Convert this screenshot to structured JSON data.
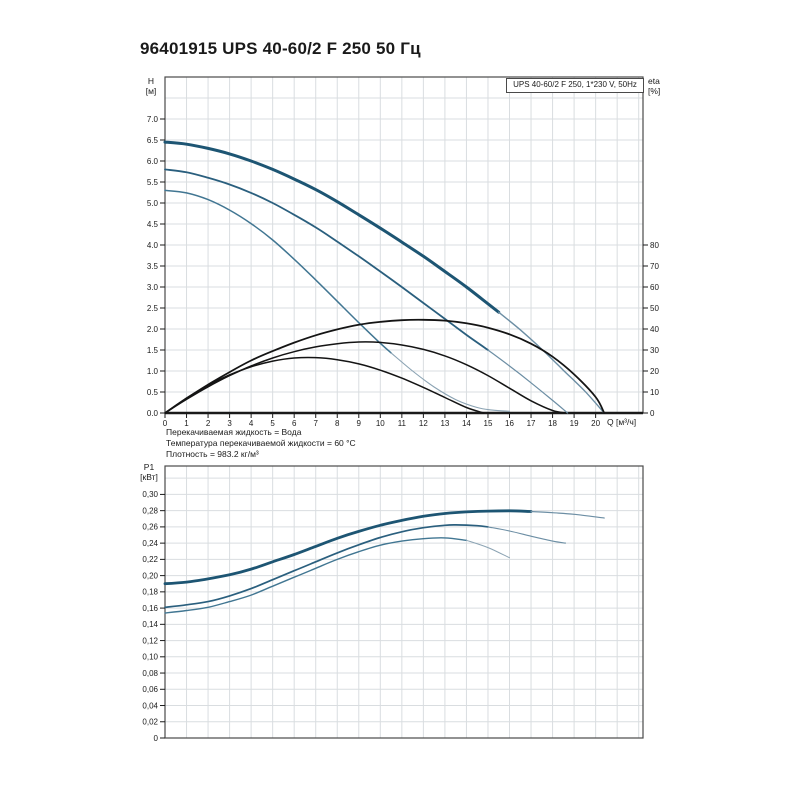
{
  "title": "96401915 UPS 40-60/2 F 250 50 Гц",
  "legend": "UPS 40-60/2 F 250, 1*230 V, 50Hz",
  "notes": [
    "Перекачиваемая жидкость = Вода",
    "Температура перекачиваемой жидкости = 60 °C",
    "Плотность = 983.2 кг/м³"
  ],
  "axis_units": {
    "head_line1": "H",
    "head_line2": "[м]",
    "eta_line1": "eta",
    "eta_line2": "[%]",
    "flow": "Q [м³/ч]",
    "power_line1": "P1",
    "power_line2": "[кВт]"
  },
  "colors": {
    "curve_dark_blue": "#1d5573",
    "curve_mid_blue": "#2a5f7e",
    "curve_light_blue": "#417692",
    "curve_tail_blue": "#6c8ea4",
    "curve_tail_pale": "#8ba3b3",
    "curve_black": "#141414",
    "grid": "#d9dde0",
    "frame": "#4a4a4a",
    "axis": "#1a1a1a"
  },
  "chart_data": [
    {
      "type": "line",
      "title": "Head (H) and efficiency (eta) vs flow (Q)",
      "xlabel": "Q [м³/ч]",
      "ylabel_left": "H [м]",
      "ylabel_right": "eta [%]",
      "xlim": [
        0,
        22.2
      ],
      "ylim_left": [
        0,
        8
      ],
      "ylim_right": [
        0,
        160
      ],
      "grid": true,
      "legend_position": "top-right",
      "x_tick_labels": [
        "0",
        "1",
        "2",
        "3",
        "4",
        "5",
        "6",
        "7",
        "8",
        "9",
        "10",
        "11",
        "12",
        "13",
        "14",
        "15",
        "16",
        "17",
        "18",
        "19",
        "20"
      ],
      "y_tick_labels_left": [
        "0.0",
        "0.5",
        "1.0",
        "1.5",
        "2.0",
        "2.5",
        "3.0",
        "3.5",
        "4.0",
        "4.5",
        "5.0",
        "5.5",
        "6.0",
        "6.5",
        "7.0"
      ],
      "y_tick_labels_right": [
        "0",
        "10",
        "20",
        "30",
        "40",
        "50",
        "60",
        "70",
        "80"
      ],
      "series": [
        {
          "name": "H-speed3-main",
          "axis": "H",
          "color": "#1d5573",
          "width": 3,
          "points": [
            [
              0,
              6.45
            ],
            [
              1,
              6.4
            ],
            [
              2,
              6.3
            ],
            [
              3,
              6.17
            ],
            [
              4,
              6.0
            ],
            [
              5,
              5.8
            ],
            [
              6,
              5.57
            ],
            [
              7,
              5.32
            ],
            [
              8,
              5.03
            ],
            [
              9,
              4.72
            ],
            [
              10,
              4.4
            ],
            [
              11,
              4.07
            ],
            [
              12,
              3.73
            ],
            [
              13,
              3.37
            ],
            [
              14,
              3.0
            ],
            [
              15,
              2.6
            ],
            [
              15.5,
              2.4
            ]
          ]
        },
        {
          "name": "H-speed3-tail",
          "axis": "H",
          "color": "#6c8ea4",
          "width": 1.4,
          "points": [
            [
              15.5,
              2.4
            ],
            [
              16.5,
              1.98
            ],
            [
              17.5,
              1.52
            ],
            [
              18.5,
              1.02
            ],
            [
              19.5,
              0.52
            ],
            [
              20.4,
              0.0
            ]
          ]
        },
        {
          "name": "H-speed2-main",
          "axis": "H",
          "color": "#2a5f7e",
          "width": 1.8,
          "points": [
            [
              0,
              5.8
            ],
            [
              1,
              5.73
            ],
            [
              2,
              5.6
            ],
            [
              3,
              5.44
            ],
            [
              4,
              5.24
            ],
            [
              5,
              5.0
            ],
            [
              6,
              4.72
            ],
            [
              7,
              4.42
            ],
            [
              8,
              4.08
            ],
            [
              9,
              3.73
            ],
            [
              10,
              3.37
            ],
            [
              11,
              3.0
            ],
            [
              12,
              2.62
            ],
            [
              13,
              2.24
            ],
            [
              14,
              1.86
            ],
            [
              15,
              1.5
            ]
          ]
        },
        {
          "name": "H-speed2-tail",
          "axis": "H",
          "color": "#6c8ea4",
          "width": 1.2,
          "points": [
            [
              15,
              1.5
            ],
            [
              16,
              1.12
            ],
            [
              17,
              0.72
            ],
            [
              18,
              0.3
            ],
            [
              18.7,
              0.0
            ]
          ]
        },
        {
          "name": "H-speed1-main",
          "axis": "H",
          "color": "#417692",
          "width": 1.5,
          "points": [
            [
              0,
              5.3
            ],
            [
              1,
              5.24
            ],
            [
              2,
              5.08
            ],
            [
              3,
              4.83
            ],
            [
              4,
              4.51
            ],
            [
              5,
              4.12
            ],
            [
              6,
              3.66
            ],
            [
              7,
              3.17
            ],
            [
              8,
              2.66
            ],
            [
              9,
              2.15
            ],
            [
              10,
              1.66
            ],
            [
              10.5,
              1.43
            ]
          ]
        },
        {
          "name": "H-speed1-tail",
          "axis": "H",
          "color": "#8ba3b3",
          "width": 1.1,
          "points": [
            [
              10.5,
              1.43
            ],
            [
              11.5,
              1.0
            ],
            [
              12.5,
              0.62
            ],
            [
              13.5,
              0.32
            ],
            [
              14.5,
              0.13
            ],
            [
              15.2,
              0.07
            ],
            [
              16,
              0.04
            ]
          ]
        },
        {
          "name": "eta-speed3",
          "axis": "eta",
          "color": "#141414",
          "width": 1.8,
          "points": [
            [
              0,
              0
            ],
            [
              1,
              7
            ],
            [
              2,
              13.5
            ],
            [
              3,
              19.5
            ],
            [
              4,
              25
            ],
            [
              5,
              29.5
            ],
            [
              6,
              33.5
            ],
            [
              7,
              37
            ],
            [
              8,
              39.8
            ],
            [
              9,
              42
            ],
            [
              10,
              43.4
            ],
            [
              11,
              44.2
            ],
            [
              12,
              44.4
            ],
            [
              13,
              44
            ],
            [
              14,
              42.7
            ],
            [
              15,
              40.6
            ],
            [
              16,
              37.5
            ],
            [
              17,
              33
            ],
            [
              18,
              26.8
            ],
            [
              19,
              18.4
            ],
            [
              20,
              7.6
            ],
            [
              20.4,
              0
            ]
          ]
        },
        {
          "name": "eta-speed2",
          "axis": "eta",
          "color": "#141414",
          "width": 1.5,
          "points": [
            [
              0,
              0
            ],
            [
              1,
              6.5
            ],
            [
              2,
              12.5
            ],
            [
              3,
              17.8
            ],
            [
              4,
              22.4
            ],
            [
              5,
              26.2
            ],
            [
              6,
              29.2
            ],
            [
              7,
              31.5
            ],
            [
              8,
              33
            ],
            [
              9,
              33.8
            ],
            [
              10,
              33.6
            ],
            [
              11,
              32.4
            ],
            [
              12,
              30.3
            ],
            [
              13,
              27.2
            ],
            [
              14,
              23
            ],
            [
              15,
              17.8
            ],
            [
              16,
              11.8
            ],
            [
              17,
              5.8
            ],
            [
              18,
              1.2
            ],
            [
              18.6,
              0
            ]
          ]
        },
        {
          "name": "eta-speed1",
          "axis": "eta",
          "color": "#141414",
          "width": 1.5,
          "points": [
            [
              0,
              0
            ],
            [
              1,
              7
            ],
            [
              2,
              13.2
            ],
            [
              3,
              18.2
            ],
            [
              4,
              22
            ],
            [
              5,
              24.7
            ],
            [
              6,
              26.2
            ],
            [
              7,
              26.4
            ],
            [
              8,
              25.4
            ],
            [
              9,
              23.4
            ],
            [
              10,
              20.4
            ],
            [
              11,
              16.6
            ],
            [
              12,
              12.2
            ],
            [
              13,
              7.4
            ],
            [
              14,
              2.6
            ],
            [
              14.8,
              0
            ]
          ]
        }
      ]
    },
    {
      "type": "line",
      "title": "Power input (P1) vs flow (Q)",
      "xlabel": "",
      "ylabel_left": "P1 [кВт]",
      "xlim": [
        0,
        22.2
      ],
      "ylim_left": [
        0,
        0.335
      ],
      "grid": true,
      "y_tick_labels_left": [
        "0",
        "0,02",
        "0,04",
        "0,06",
        "0,08",
        "0,10",
        "0,12",
        "0,14",
        "0,16",
        "0,18",
        "0,20",
        "0,22",
        "0,24",
        "0,26",
        "0,28",
        "0,30"
      ],
      "series": [
        {
          "name": "P1-speed3-main",
          "axis": "P1",
          "color": "#1d5573",
          "width": 2.8,
          "points": [
            [
              0,
              0.19
            ],
            [
              1,
              0.192
            ],
            [
              2,
              0.196
            ],
            [
              3,
              0.201
            ],
            [
              4,
              0.208
            ],
            [
              5,
              0.217
            ],
            [
              6,
              0.226
            ],
            [
              7,
              0.236
            ],
            [
              8,
              0.246
            ],
            [
              9,
              0.2545
            ],
            [
              10,
              0.262
            ],
            [
              11,
              0.268
            ],
            [
              12,
              0.273
            ],
            [
              13,
              0.2765
            ],
            [
              14,
              0.2785
            ],
            [
              15,
              0.2795
            ],
            [
              16,
              0.2798
            ],
            [
              17,
              0.279
            ]
          ]
        },
        {
          "name": "P1-speed3-tail",
          "axis": "P1",
          "color": "#6c8ea4",
          "width": 1.2,
          "points": [
            [
              17,
              0.279
            ],
            [
              18,
              0.2775
            ],
            [
              19,
              0.2755
            ],
            [
              20.4,
              0.271
            ]
          ]
        },
        {
          "name": "P1-speed2-main",
          "axis": "P1",
          "color": "#2a5f7e",
          "width": 1.7,
          "points": [
            [
              0,
              0.161
            ],
            [
              1,
              0.164
            ],
            [
              2,
              0.168
            ],
            [
              3,
              0.175
            ],
            [
              4,
              0.184
            ],
            [
              5,
              0.195
            ],
            [
              6,
              0.206
            ],
            [
              7,
              0.217
            ],
            [
              8,
              0.228
            ],
            [
              9,
              0.238
            ],
            [
              10,
              0.247
            ],
            [
              11,
              0.254
            ],
            [
              12,
              0.259
            ],
            [
              13,
              0.262
            ],
            [
              13.5,
              0.2625
            ],
            [
              14.5,
              0.2615
            ],
            [
              15,
              0.26
            ]
          ]
        },
        {
          "name": "P1-speed2-tail",
          "axis": "P1",
          "color": "#6c8ea4",
          "width": 1.1,
          "points": [
            [
              15,
              0.26
            ],
            [
              16,
              0.255
            ],
            [
              17,
              0.2485
            ],
            [
              18,
              0.2425
            ],
            [
              18.6,
              0.24
            ]
          ]
        },
        {
          "name": "P1-speed1-main",
          "axis": "P1",
          "color": "#417692",
          "width": 1.4,
          "points": [
            [
              0,
              0.154
            ],
            [
              1,
              0.157
            ],
            [
              2,
              0.161
            ],
            [
              3,
              0.168
            ],
            [
              4,
              0.176
            ],
            [
              5,
              0.187
            ],
            [
              6,
              0.198
            ],
            [
              7,
              0.209
            ],
            [
              8,
              0.22
            ],
            [
              9,
              0.2295
            ],
            [
              10,
              0.2375
            ],
            [
              11,
              0.2425
            ],
            [
              12,
              0.2455
            ],
            [
              13,
              0.2465
            ],
            [
              14,
              0.2435
            ]
          ]
        },
        {
          "name": "P1-speed1-tail",
          "axis": "P1",
          "color": "#8ba3b3",
          "width": 1.0,
          "points": [
            [
              14,
              0.2435
            ],
            [
              15,
              0.2345
            ],
            [
              16,
              0.222
            ]
          ]
        }
      ]
    }
  ]
}
